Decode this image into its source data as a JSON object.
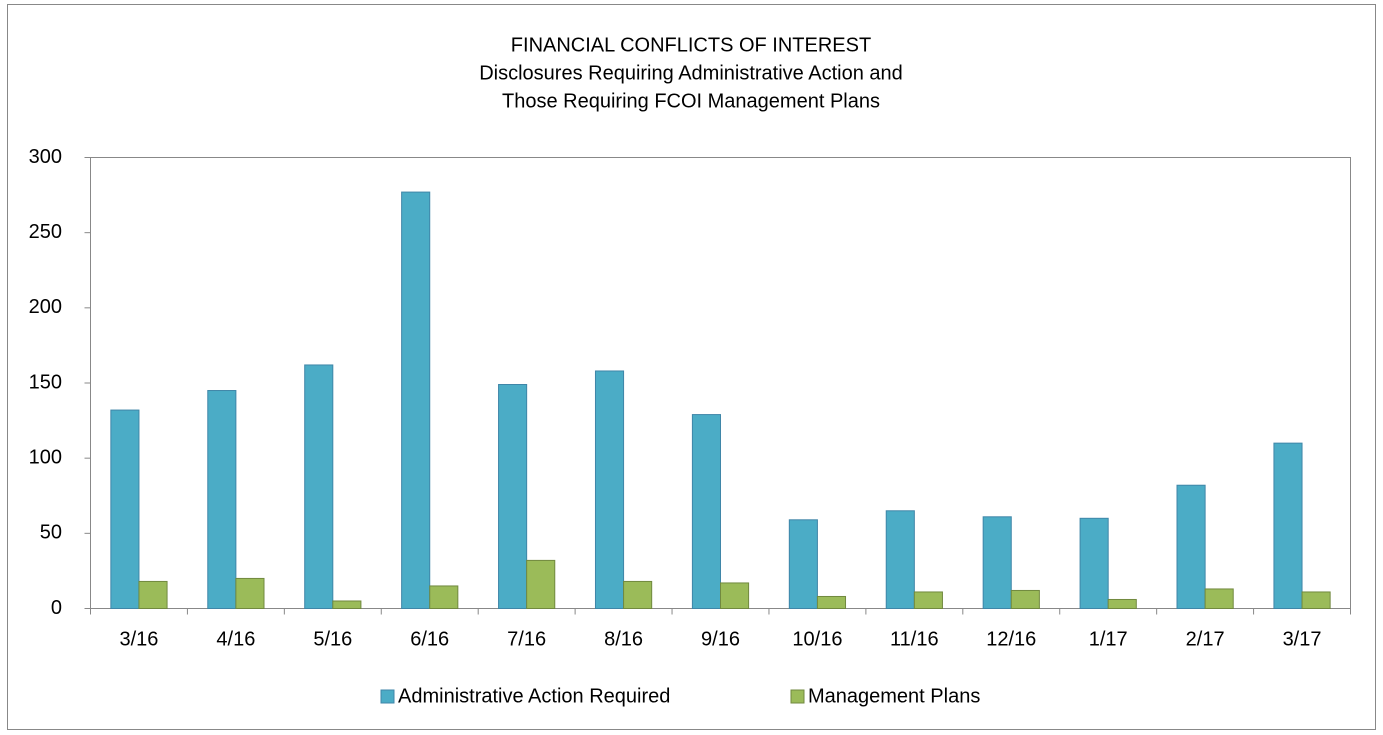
{
  "chart_data": {
    "type": "bar",
    "title": "FINANCIAL CONFLICTS OF INTEREST",
    "subtitle": [
      "Disclosures Requiring Administrative Action and",
      "Those Requiring FCOI Management Plans"
    ],
    "categories": [
      "3/16",
      "4/16",
      "5/16",
      "6/16",
      "7/16",
      "8/16",
      "9/16",
      "10/16",
      "11/16",
      "12/16",
      "1/17",
      "2/17",
      "3/17"
    ],
    "series": [
      {
        "name": "Administrative Action Required",
        "color": "#4bacc6",
        "values": [
          132,
          145,
          162,
          277,
          149,
          158,
          129,
          59,
          65,
          61,
          60,
          82,
          110
        ]
      },
      {
        "name": "Management Plans",
        "color": "#9bbb59",
        "values": [
          18,
          20,
          5,
          15,
          32,
          18,
          17,
          8,
          11,
          12,
          6,
          13,
          11
        ]
      }
    ],
    "ylim": [
      0,
      300
    ],
    "yticks": [
      0,
      50,
      100,
      150,
      200,
      250,
      300
    ],
    "grid": false,
    "legend": "bottom"
  }
}
